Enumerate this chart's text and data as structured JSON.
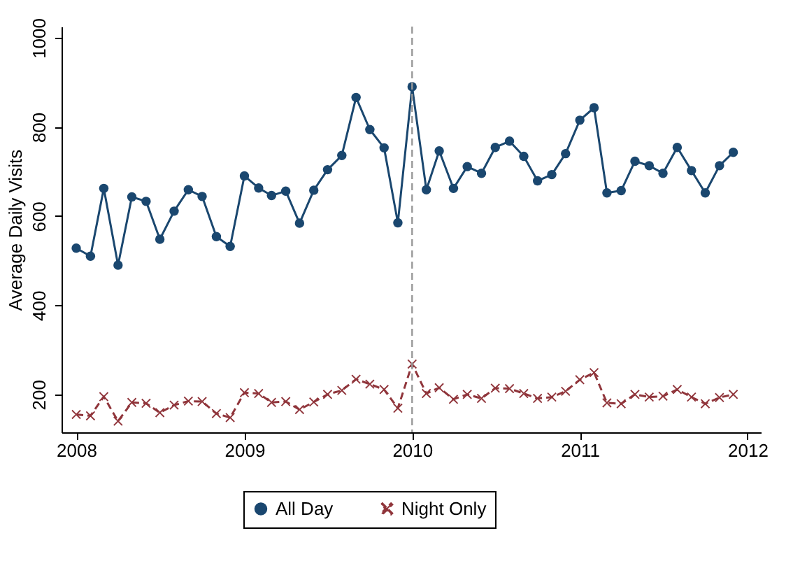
{
  "chart_data": {
    "type": "line",
    "ylabel": "Average Daily Visits",
    "x": [
      "2008-01",
      "2008-02",
      "2008-03",
      "2008-04",
      "2008-05",
      "2008-06",
      "2008-07",
      "2008-08",
      "2008-09",
      "2008-10",
      "2008-11",
      "2008-12",
      "2009-01",
      "2009-02",
      "2009-03",
      "2009-04",
      "2009-05",
      "2009-06",
      "2009-07",
      "2009-08",
      "2009-09",
      "2009-10",
      "2009-11",
      "2009-12",
      "2010-01",
      "2010-02",
      "2010-03",
      "2010-04",
      "2010-05",
      "2010-06",
      "2010-07",
      "2010-08",
      "2010-09",
      "2010-10",
      "2010-11",
      "2010-12",
      "2011-01",
      "2011-02",
      "2011-03",
      "2011-04",
      "2011-05",
      "2011-06",
      "2011-07",
      "2011-08",
      "2011-09",
      "2011-10",
      "2011-11",
      "2011-12"
    ],
    "series": [
      {
        "name": "All Day",
        "color": "#1a476f",
        "marker": "circle",
        "line_style": "solid",
        "values": [
          528,
          510,
          662,
          490,
          643,
          633,
          548,
          611,
          659,
          644,
          554,
          532,
          690,
          663,
          646,
          656,
          584,
          658,
          704,
          736,
          866,
          794,
          753,
          585,
          890,
          659,
          746,
          662,
          711,
          696,
          754,
          768,
          734,
          679,
          693,
          740,
          815,
          843,
          652,
          657,
          723,
          713,
          696,
          754,
          702,
          652,
          713,
          743
        ]
      },
      {
        "name": "Night Only",
        "color": "#90353b",
        "marker": "cross",
        "line_style": "dashed",
        "values": [
          155,
          152,
          195,
          140,
          182,
          180,
          159,
          176,
          185,
          184,
          157,
          148,
          204,
          202,
          182,
          184,
          166,
          183,
          200,
          209,
          234,
          223,
          211,
          169,
          268,
          202,
          215,
          189,
          200,
          191,
          214,
          213,
          202,
          191,
          194,
          207,
          233,
          249,
          181,
          179,
          200,
          194,
          196,
          211,
          194,
          179,
          193,
          200
        ]
      }
    ],
    "xlim": [
      "2007-11-30",
      "2012-01-30"
    ],
    "xticks": [
      "2008",
      "2009",
      "2010",
      "2011",
      "2012"
    ],
    "ylim": [
      115,
      1025
    ],
    "yticks": [
      200,
      400,
      600,
      800,
      1000
    ],
    "ref_lines": [
      {
        "axis": "x",
        "value": "2010-01",
        "color": "#999999",
        "line_style": "dashed"
      }
    ],
    "grid": false,
    "legend": "bottom"
  }
}
